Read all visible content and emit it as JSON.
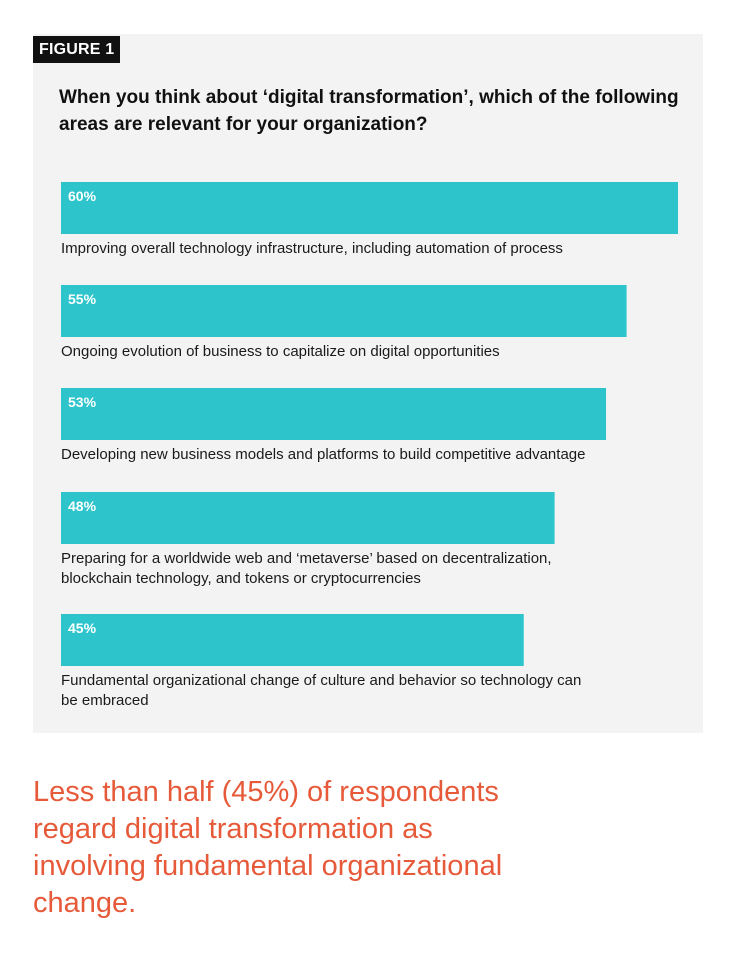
{
  "figure_label": "FIGURE 1",
  "question": "When you think about ‘digital transformation’, which of the following areas are relevant for your organization?",
  "headline": "Less than half (45%) of respondents regard digital transformation as involving fundamental organizational change.",
  "colors": {
    "bar": "#2dc4cc",
    "panel": "#f3f3f3",
    "headline": "#e65a3a"
  },
  "chart_data": {
    "type": "bar",
    "orientation": "horizontal",
    "value_unit": "%",
    "xlim": [
      0,
      60
    ],
    "categories": [
      "Improving overall technology infrastructure, including automation of process",
      "Ongoing evolution of business to capitalize on digital opportunities",
      "Developing new business models and platforms to build competitive advantage",
      "Preparing for a worldwide web and ‘metaverse’ based on decentralization, blockchain technology, and tokens or cryptocurrencies",
      "Fundamental organizational change of culture and behavior so technology can be embraced"
    ],
    "values": [
      60,
      55,
      53,
      48,
      45
    ],
    "value_labels": [
      "60%",
      "55%",
      "53%",
      "48%",
      "45%"
    ]
  }
}
